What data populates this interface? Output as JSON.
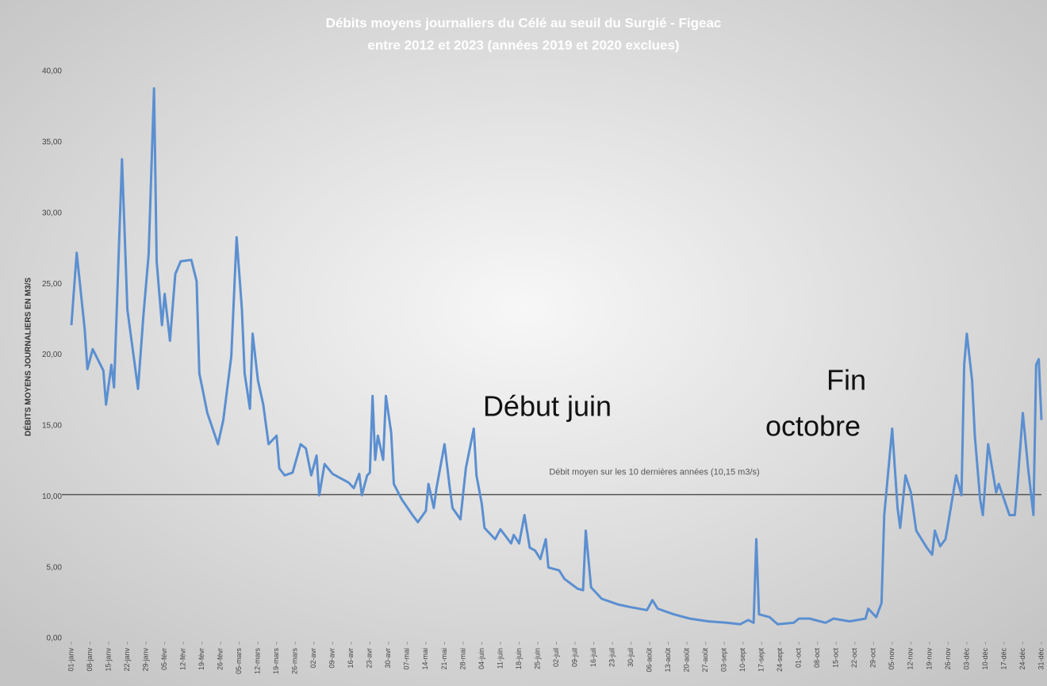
{
  "chart_data": {
    "type": "line",
    "title": [
      "Débits moyens journaliers du Célé au seuil du Surgié - Figeac",
      "entre 2012 et 2023 (années 2019 et 2020 exclues)"
    ],
    "y_label": "DÉBITS MOYENS JOURNALIERS EN M3/S",
    "xlim": [
      1,
      365
    ],
    "xticks": [
      {
        "value": 1,
        "label": "01-janv"
      },
      {
        "value": 8,
        "label": "08-janv"
      },
      {
        "value": 15,
        "label": "15-janv"
      },
      {
        "value": 22,
        "label": "22-janv"
      },
      {
        "value": 29,
        "label": "29-janv"
      },
      {
        "value": 36,
        "label": "05-févr"
      },
      {
        "value": 43,
        "label": "12-févr"
      },
      {
        "value": 50,
        "label": "19-févr"
      },
      {
        "value": 57,
        "label": "26-févr"
      },
      {
        "value": 64,
        "label": "05-mars"
      },
      {
        "value": 71,
        "label": "12-mars"
      },
      {
        "value": 78,
        "label": "19-mars"
      },
      {
        "value": 85,
        "label": "26-mars"
      },
      {
        "value": 92,
        "label": "02-avr"
      },
      {
        "value": 99,
        "label": "09-avr"
      },
      {
        "value": 106,
        "label": "16-avr"
      },
      {
        "value": 113,
        "label": "23-avr"
      },
      {
        "value": 120,
        "label": "30-avr"
      },
      {
        "value": 127,
        "label": "07-mai"
      },
      {
        "value": 134,
        "label": "14-mai"
      },
      {
        "value": 141,
        "label": "21-mai"
      },
      {
        "value": 148,
        "label": "28-mai"
      },
      {
        "value": 155,
        "label": "04-juin"
      },
      {
        "value": 162,
        "label": "11-juin"
      },
      {
        "value": 169,
        "label": "18-juin"
      },
      {
        "value": 176,
        "label": "25-juin"
      },
      {
        "value": 183,
        "label": "02-juil"
      },
      {
        "value": 190,
        "label": "09-juil"
      },
      {
        "value": 197,
        "label": "16-juil"
      },
      {
        "value": 204,
        "label": "23-juil"
      },
      {
        "value": 211,
        "label": "30-juil"
      },
      {
        "value": 218,
        "label": "06-août"
      },
      {
        "value": 225,
        "label": "13-août"
      },
      {
        "value": 232,
        "label": "20-août"
      },
      {
        "value": 239,
        "label": "27-août"
      },
      {
        "value": 246,
        "label": "03-sept"
      },
      {
        "value": 253,
        "label": "10-sept"
      },
      {
        "value": 260,
        "label": "17-sept"
      },
      {
        "value": 267,
        "label": "24-sept"
      },
      {
        "value": 274,
        "label": "01-oct"
      },
      {
        "value": 281,
        "label": "08-oct"
      },
      {
        "value": 288,
        "label": "15-oct"
      },
      {
        "value": 295,
        "label": "22-oct"
      },
      {
        "value": 302,
        "label": "29-oct"
      },
      {
        "value": 309,
        "label": "05-nov"
      },
      {
        "value": 316,
        "label": "12-nov"
      },
      {
        "value": 323,
        "label": "19-nov"
      },
      {
        "value": 330,
        "label": "26-nov"
      },
      {
        "value": 337,
        "label": "03-déc"
      },
      {
        "value": 344,
        "label": "10-déc"
      },
      {
        "value": 351,
        "label": "17-déc"
      },
      {
        "value": 358,
        "label": "24-déc"
      },
      {
        "value": 365,
        "label": "31-déc"
      }
    ],
    "ylim": [
      0,
      40
    ],
    "yticks": [
      {
        "value": 0,
        "label": "0,00"
      },
      {
        "value": 5,
        "label": "5,00"
      },
      {
        "value": 10,
        "label": "10,00"
      },
      {
        "value": 15,
        "label": "15,00"
      },
      {
        "value": 20,
        "label": "20,00"
      },
      {
        "value": 25,
        "label": "25,00"
      },
      {
        "value": 30,
        "label": "30,00"
      },
      {
        "value": 35,
        "label": "35,00"
      },
      {
        "value": 40,
        "label": "40,00"
      }
    ],
    "grid": false,
    "series": [
      {
        "color": "#5b8fd0",
        "x": [
          1,
          3,
          6,
          7,
          9,
          13,
          14,
          16,
          17,
          20,
          22,
          24,
          26,
          28,
          30,
          32,
          33,
          35,
          36,
          38,
          40,
          42,
          46,
          48,
          49,
          52,
          56,
          58,
          61,
          63,
          65,
          66,
          68,
          69,
          71,
          73,
          75,
          78,
          79,
          81,
          84,
          87,
          89,
          91,
          93,
          94,
          96,
          99,
          103,
          105,
          107,
          109,
          110,
          112,
          113,
          114,
          115,
          116,
          118,
          119,
          121,
          122,
          125,
          129,
          131,
          134,
          135,
          137,
          138,
          141,
          143,
          144,
          147,
          149,
          152,
          153,
          155,
          156,
          160,
          162,
          166,
          167,
          169,
          171,
          173,
          175,
          177,
          179,
          180,
          184,
          186,
          191,
          193,
          194,
          196,
          200,
          206,
          211,
          217,
          219,
          221,
          227,
          233,
          240,
          247,
          252,
          255,
          257,
          258,
          259,
          263,
          266,
          272,
          274,
          278,
          284,
          287,
          293,
          299,
          300,
          303,
          305,
          306,
          309,
          311,
          312,
          314,
          316,
          318,
          322,
          324,
          325,
          327,
          329,
          330,
          333,
          335,
          336,
          337,
          339,
          340,
          342,
          343,
          345,
          348,
          349,
          353,
          355,
          356,
          358,
          360,
          362,
          363,
          364,
          365
        ],
        "values": [
          22.1,
          27.2,
          21.8,
          19.0,
          20.4,
          18.9,
          16.5,
          19.3,
          17.7,
          33.8,
          23.2,
          20.4,
          17.6,
          22.7,
          27.1,
          38.8,
          26.6,
          22.1,
          24.3,
          21.0,
          25.7,
          26.6,
          26.7,
          25.2,
          18.7,
          15.9,
          13.7,
          15.4,
          19.9,
          28.3,
          23.2,
          18.7,
          16.2,
          21.5,
          18.2,
          16.5,
          13.7,
          14.3,
          12.0,
          11.5,
          11.7,
          13.7,
          13.4,
          11.5,
          12.9,
          10.1,
          12.3,
          11.6,
          11.2,
          11.0,
          10.6,
          11.6,
          10.1,
          11.5,
          11.7,
          17.1,
          12.6,
          14.3,
          12.6,
          17.1,
          14.5,
          10.9,
          9.8,
          8.7,
          8.2,
          9.0,
          10.9,
          9.2,
          10.6,
          13.7,
          10.6,
          9.2,
          8.4,
          12.0,
          14.8,
          11.5,
          9.5,
          7.8,
          7.0,
          7.7,
          6.7,
          7.3,
          6.7,
          8.7,
          6.4,
          6.2,
          5.6,
          7.0,
          5.0,
          4.8,
          4.2,
          3.5,
          3.4,
          7.6,
          3.6,
          2.8,
          2.4,
          2.2,
          2.0,
          2.7,
          2.1,
          1.7,
          1.4,
          1.2,
          1.1,
          1.0,
          1.3,
          1.1,
          7.0,
          1.7,
          1.5,
          1.0,
          1.1,
          1.4,
          1.4,
          1.1,
          1.4,
          1.2,
          1.4,
          2.1,
          1.5,
          2.5,
          8.7,
          14.8,
          9.2,
          7.8,
          11.5,
          10.3,
          7.6,
          6.4,
          5.9,
          7.6,
          6.5,
          7.0,
          8.1,
          11.5,
          10.1,
          19.3,
          21.5,
          18.2,
          14.3,
          9.8,
          8.7,
          13.7,
          10.3,
          10.9,
          8.7,
          8.7,
          10.9,
          15.9,
          12.0,
          8.7,
          19.3,
          19.7,
          15.4
        ]
      }
    ],
    "reference_line": {
      "value": 10.15,
      "label": "Débit moyen sur les 10 dernières années (10,15 m3/s)",
      "color": "#555555"
    },
    "annotations": [
      {
        "lines": [
          "Début juin"
        ]
      },
      {
        "lines": [
          "Fin",
          "octobre"
        ]
      }
    ]
  }
}
